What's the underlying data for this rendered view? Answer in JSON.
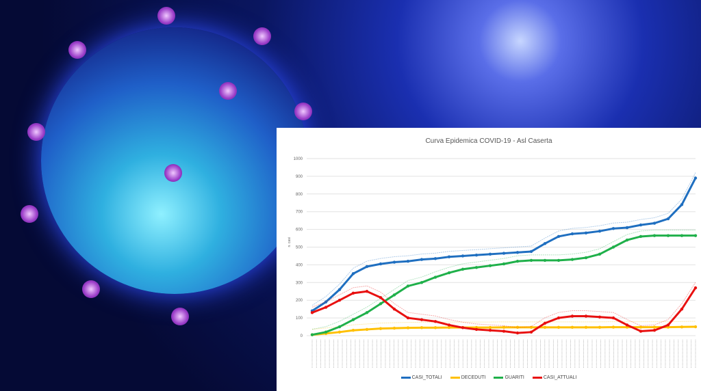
{
  "chart_data": {
    "type": "line",
    "title": "Curva Epidemica COVID-19 - Asl Caserta",
    "ylabel": "n. casi",
    "ylim": [
      0,
      1000
    ],
    "yticks": [
      0,
      100,
      200,
      300,
      400,
      500,
      600,
      700,
      800,
      900,
      1000
    ],
    "grid": true,
    "legend_position": "bottom",
    "x_index": [
      0,
      1,
      2,
      3,
      4,
      5,
      6,
      7,
      8,
      9,
      10,
      11,
      12,
      13,
      14,
      15,
      16,
      17,
      18,
      19,
      20,
      21,
      22,
      23,
      24,
      25,
      26,
      27,
      28
    ],
    "series": [
      {
        "name": "CASI_TOTALI",
        "color": "#1f6fc0",
        "values": [
          140,
          190,
          260,
          350,
          390,
          405,
          415,
          420,
          430,
          435,
          445,
          450,
          455,
          460,
          465,
          470,
          475,
          520,
          560,
          575,
          580,
          590,
          605,
          610,
          625,
          635,
          660,
          740,
          890
        ]
      },
      {
        "name": "DECEDUTI",
        "color": "#ffc000",
        "values": [
          5,
          12,
          20,
          30,
          35,
          40,
          42,
          44,
          45,
          45,
          46,
          46,
          46,
          46,
          47,
          47,
          47,
          47,
          47,
          47,
          47,
          47,
          48,
          48,
          48,
          48,
          48,
          49,
          50
        ]
      },
      {
        "name": "GUARITI",
        "color": "#1fb04a",
        "values": [
          5,
          20,
          50,
          90,
          130,
          180,
          230,
          280,
          300,
          330,
          355,
          375,
          385,
          395,
          405,
          420,
          425,
          425,
          425,
          430,
          440,
          460,
          500,
          540,
          560,
          565,
          565,
          565,
          565
        ]
      },
      {
        "name": "CASI_ATTUALI",
        "color": "#e81010",
        "values": [
          130,
          160,
          200,
          240,
          250,
          215,
          150,
          100,
          90,
          80,
          60,
          45,
          35,
          30,
          25,
          15,
          20,
          70,
          100,
          110,
          110,
          105,
          100,
          60,
          25,
          30,
          60,
          150,
          270
        ]
      }
    ]
  }
}
